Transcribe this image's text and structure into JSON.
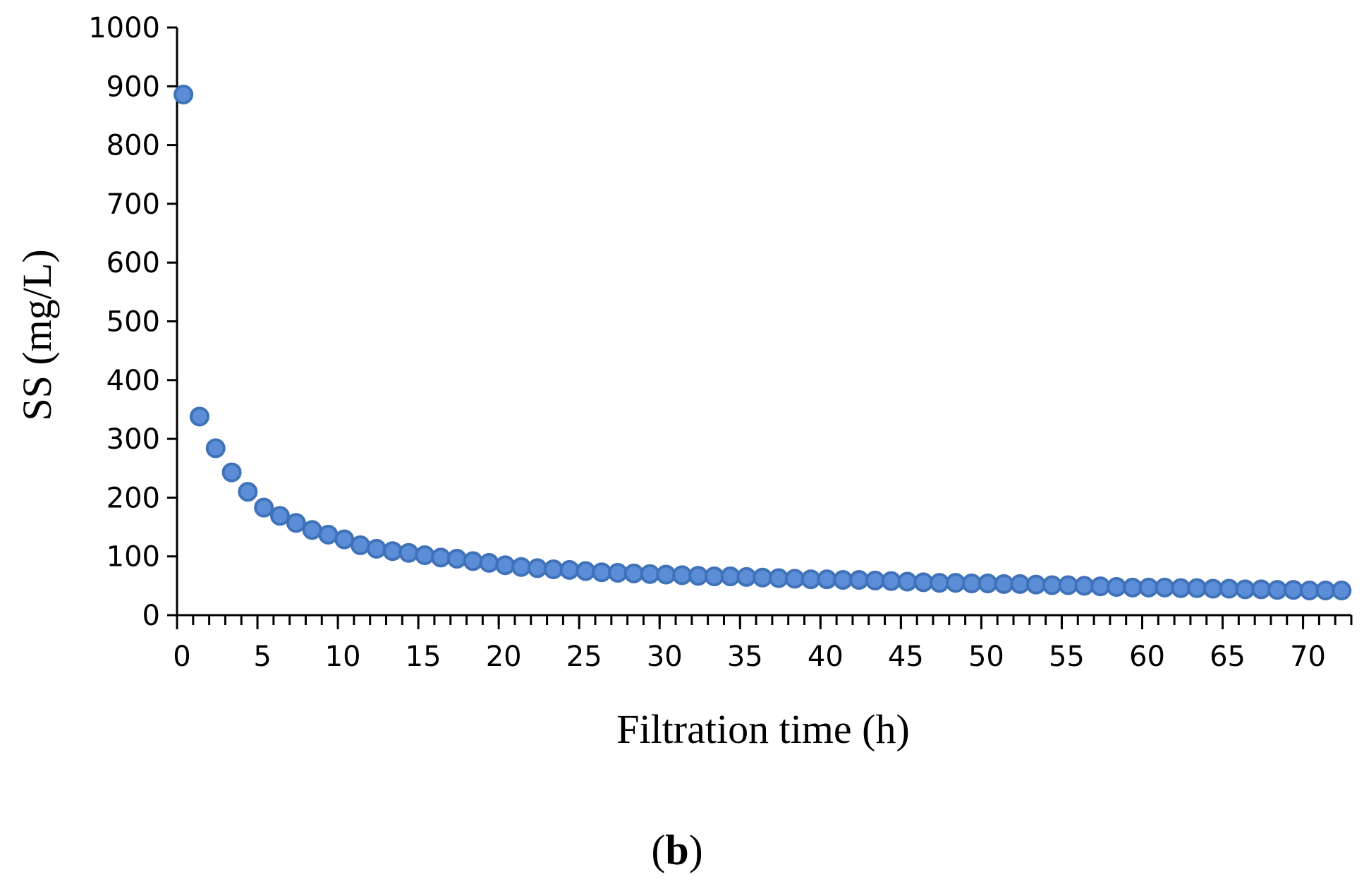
{
  "chart_data": {
    "type": "scatter",
    "xlabel": "Filtration time (h)",
    "ylabel": "SS (mg/L)",
    "panel_label": {
      "open": "(",
      "letter": "b",
      "close": ")"
    },
    "xlim": [
      0,
      73
    ],
    "ylim": [
      0,
      1000
    ],
    "xticks": [
      0,
      5,
      10,
      15,
      20,
      25,
      30,
      35,
      40,
      45,
      50,
      55,
      60,
      65,
      70
    ],
    "yticks": [
      0,
      100,
      200,
      300,
      400,
      500,
      600,
      700,
      800,
      900,
      1000
    ],
    "grid": false,
    "marker_color": "#5B8ED6",
    "marker_edge_color": "#3F72B8",
    "series": [
      {
        "x": [
          0.4,
          1.4,
          2.4,
          3.4,
          4.4,
          5.4,
          6.4,
          7.4,
          8.4,
          9.4,
          10.4,
          11.4,
          12.4,
          13.4,
          14.4,
          15.4,
          16.4,
          17.4,
          18.4,
          19.4,
          20.4,
          21.4,
          22.4,
          23.4,
          24.4,
          25.4,
          26.4,
          27.4,
          28.4,
          29.4,
          30.4,
          31.4,
          32.4,
          33.4,
          34.4,
          35.4,
          36.4,
          37.4,
          38.4,
          39.4,
          40.4,
          41.4,
          42.4,
          43.4,
          44.4,
          45.4,
          46.4,
          47.4,
          48.4,
          49.4,
          50.4,
          51.4,
          52.4,
          53.4,
          54.4,
          55.4,
          56.4,
          57.4,
          58.4,
          59.4,
          60.4,
          61.4,
          62.4,
          63.4,
          64.4,
          65.4,
          66.4,
          67.4,
          68.4,
          69.4,
          70.4,
          71.4,
          72.4
        ],
        "y": [
          886,
          338,
          284,
          243,
          210,
          183,
          169,
          157,
          145,
          137,
          129,
          119,
          113,
          109,
          106,
          102,
          98,
          96,
          92,
          89,
          85,
          82,
          80,
          78,
          77,
          75,
          73,
          72,
          71,
          70,
          69,
          68,
          67,
          66,
          66,
          65,
          64,
          63,
          62,
          61,
          61,
          60,
          60,
          59,
          58,
          57,
          56,
          55,
          55,
          54,
          54,
          53,
          53,
          52,
          51,
          51,
          50,
          49,
          48,
          47,
          47,
          47,
          46,
          46,
          45,
          45,
          44,
          44,
          43,
          43,
          42,
          42,
          42
        ]
      }
    ]
  }
}
